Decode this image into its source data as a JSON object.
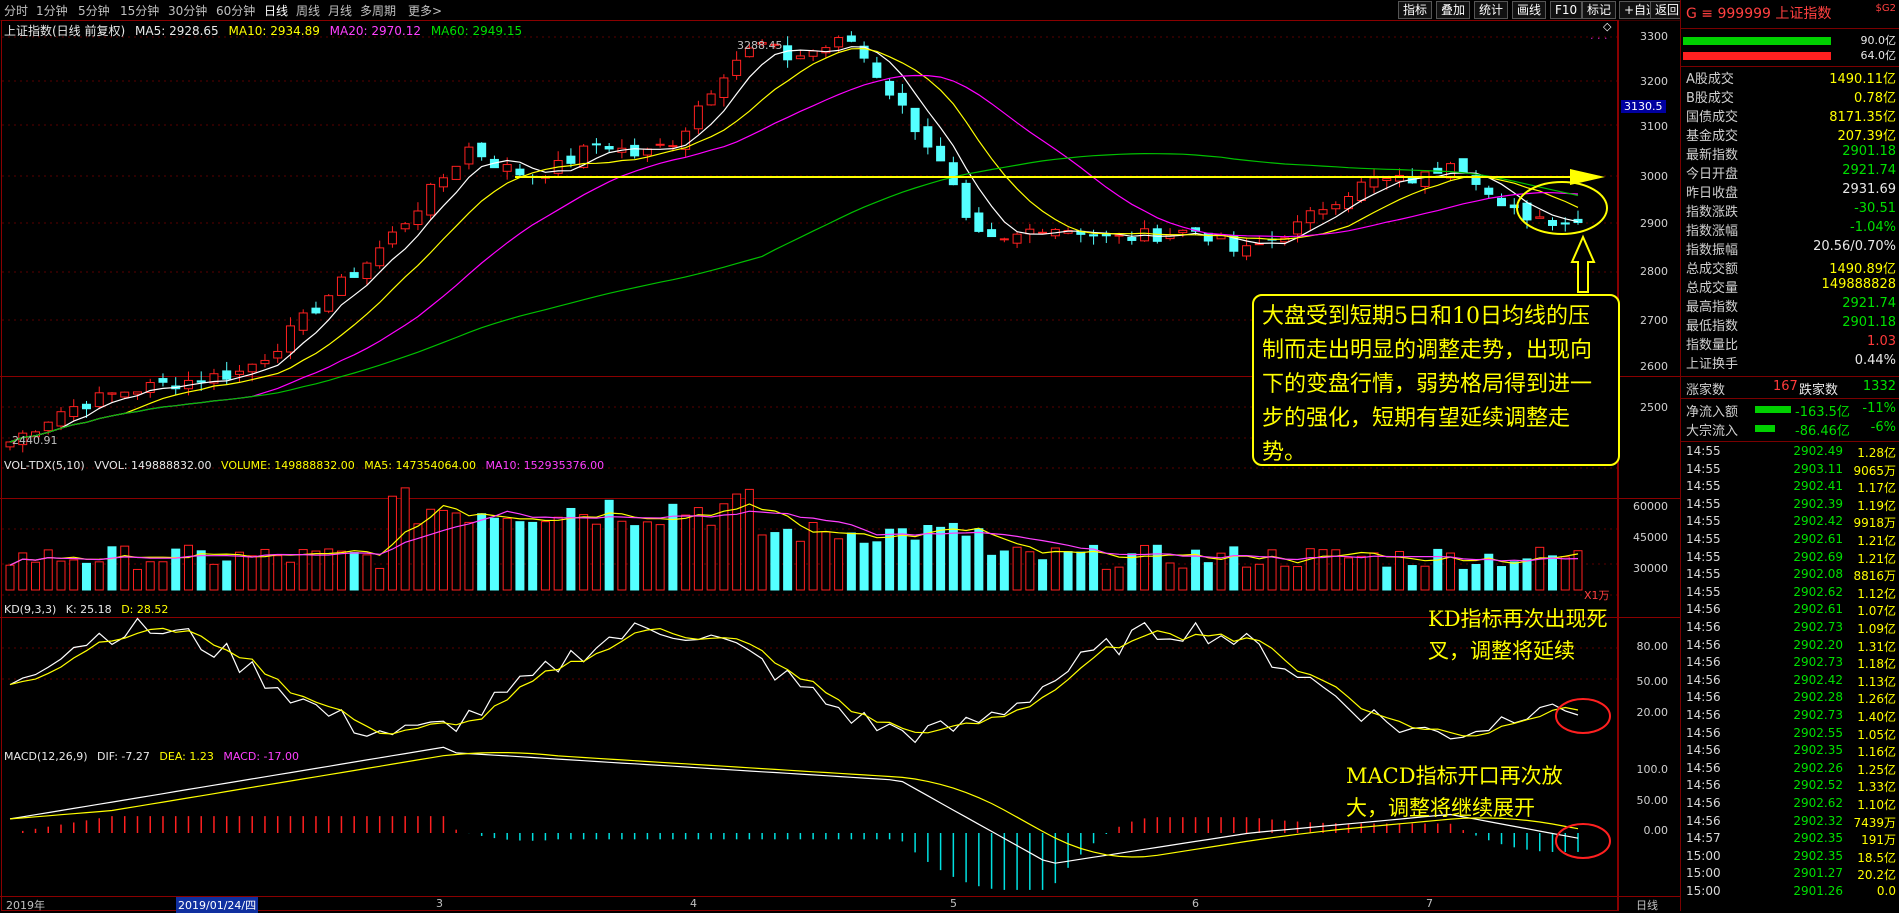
{
  "toolbar": {
    "timeframes": [
      "分时",
      "1分钟",
      "5分钟",
      "15分钟",
      "30分钟",
      "60分钟",
      "日线",
      "周线",
      "月线",
      "多周期",
      "更多>"
    ],
    "active_index": 6,
    "right_buttons": [
      "指标",
      "叠加",
      "统计",
      "画线",
      "F10",
      "标记",
      "+自选",
      "返回"
    ]
  },
  "kline": {
    "title": "上证指数(日线 前复权)",
    "ma5": "MA5: 2928.65",
    "ma10": "MA10: 2934.89",
    "ma20": "MA20: 2970.12",
    "ma60": "MA60: 2949.15",
    "high_label": "3288.45",
    "low_label": "2440.91",
    "price_tag": "3130.5",
    "yticks": [
      "3300",
      "3200",
      "3100",
      "3000",
      "2900",
      "2800",
      "2700",
      "2600",
      "2500"
    ],
    "colors": {
      "ma5": "#ffffff",
      "ma10": "#ffff00",
      "ma20": "#ff00ff",
      "ma60": "#00c000",
      "up": "#ff2020",
      "down": "#54ffff"
    }
  },
  "vol": {
    "title": "VOL-TDX(5,10)",
    "vvol": "VVOL: 149888832.00",
    "volume": "VOLUME: 149888832.00",
    "ma5": "MA5: 147354064.00",
    "ma10": "MA10: 152935376.00",
    "yticks": [
      "60000",
      "45000",
      "30000",
      "15000"
    ],
    "unit": "X1万"
  },
  "kd": {
    "title": "KD(9,3,3)",
    "k": "K: 25.18",
    "d": "D: 28.52",
    "yticks": [
      "80.00",
      "50.00",
      "20.00"
    ]
  },
  "macd": {
    "title": "MACD(12,26,9)",
    "dif": "DIF: -7.27",
    "dea": "DEA: 1.23",
    "macd": "MACD: -17.00",
    "yticks": [
      "100.0",
      "50.00",
      "0.00"
    ]
  },
  "xaxis": {
    "year": "2019年",
    "cursor_date": "2019/01/24/四",
    "months": [
      "3",
      "4",
      "5",
      "6",
      "7"
    ],
    "period": "日线"
  },
  "annotations": {
    "main": "大盘受到短期5日和10日均线的压制而走出明显的调整走势，出现向下的变盘行情，弱势格局得到进一步的强化，短期有望延续调整走势。",
    "kd": "KD指标再次出现死叉，调整将延续",
    "macd": "MACD指标开口再次放大，调整将继续展开"
  },
  "right_panel": {
    "header_code": "G ≡ 999999 上证指数",
    "header_tag": "$G2",
    "bar1_value": "90.0亿",
    "bar2_value": "64.0亿",
    "stats": [
      {
        "k": "A股成交",
        "v": "1490.11亿",
        "c": "yellow"
      },
      {
        "k": "B股成交",
        "v": "0.78亿",
        "c": "yellow"
      },
      {
        "k": "国债成交",
        "v": "8171.35亿",
        "c": "yellow"
      },
      {
        "k": "基金成交",
        "v": "207.39亿",
        "c": "yellow"
      },
      {
        "k": "最新指数",
        "v": "2901.18",
        "c": "green"
      },
      {
        "k": "今日开盘",
        "v": "2921.74",
        "c": "green"
      },
      {
        "k": "昨日收盘",
        "v": "2931.69",
        "c": "white"
      },
      {
        "k": "指数涨跌",
        "v": "-30.51",
        "c": "green"
      },
      {
        "k": "指数涨幅",
        "v": "-1.04%",
        "c": "green"
      },
      {
        "k": "指数振幅",
        "v": "20.56/0.70%",
        "c": "white"
      },
      {
        "k": "总成交额",
        "v": "1490.89亿",
        "c": "yellow"
      },
      {
        "k": "总成交量",
        "v": "149888828",
        "c": "yellow"
      },
      {
        "k": "最高指数",
        "v": "2921.74",
        "c": "green"
      },
      {
        "k": "最低指数",
        "v": "2901.18",
        "c": "green"
      },
      {
        "k": "指数量比",
        "v": "1.03",
        "c": "red"
      },
      {
        "k": "上证换手",
        "v": "0.44%",
        "c": "white"
      }
    ],
    "rise_label": "涨家数",
    "rise_count": "167",
    "fall_label": "跌家数",
    "fall_count": "1332",
    "netflow_label": "净流入额",
    "netflow_value": "-163.5亿",
    "netflow_pct": "-11%",
    "bigflow_label": "大宗流入",
    "bigflow_value": "-86.46亿",
    "bigflow_pct": "-6%",
    "ticks": [
      {
        "t": "14:55",
        "p": "2902.49",
        "v": "1.28亿"
      },
      {
        "t": "14:55",
        "p": "2903.11",
        "v": "9065万"
      },
      {
        "t": "14:55",
        "p": "2902.41",
        "v": "1.17亿"
      },
      {
        "t": "14:55",
        "p": "2902.39",
        "v": "1.19亿"
      },
      {
        "t": "14:55",
        "p": "2902.42",
        "v": "9918万"
      },
      {
        "t": "14:55",
        "p": "2902.61",
        "v": "1.21亿"
      },
      {
        "t": "14:55",
        "p": "2902.69",
        "v": "1.21亿"
      },
      {
        "t": "14:55",
        "p": "2902.08",
        "v": "8816万"
      },
      {
        "t": "14:55",
        "p": "2902.62",
        "v": "1.12亿"
      },
      {
        "t": "14:56",
        "p": "2902.61",
        "v": "1.07亿"
      },
      {
        "t": "14:56",
        "p": "2902.73",
        "v": "1.09亿"
      },
      {
        "t": "14:56",
        "p": "2902.20",
        "v": "1.31亿"
      },
      {
        "t": "14:56",
        "p": "2902.73",
        "v": "1.18亿"
      },
      {
        "t": "14:56",
        "p": "2902.42",
        "v": "1.13亿"
      },
      {
        "t": "14:56",
        "p": "2902.28",
        "v": "1.26亿"
      },
      {
        "t": "14:56",
        "p": "2902.73",
        "v": "1.40亿"
      },
      {
        "t": "14:56",
        "p": "2902.55",
        "v": "1.05亿"
      },
      {
        "t": "14:56",
        "p": "2902.35",
        "v": "1.16亿"
      },
      {
        "t": "14:56",
        "p": "2902.26",
        "v": "1.25亿"
      },
      {
        "t": "14:56",
        "p": "2902.52",
        "v": "1.33亿"
      },
      {
        "t": "14:56",
        "p": "2902.62",
        "v": "1.10亿"
      },
      {
        "t": "14:56",
        "p": "2902.32",
        "v": "7439万"
      },
      {
        "t": "14:57",
        "p": "2902.35",
        "v": "191万"
      },
      {
        "t": "15:00",
        "p": "2902.35",
        "v": "18.5亿"
      },
      {
        "t": "15:00",
        "p": "2901.27",
        "v": "20.2亿"
      },
      {
        "t": "15:00",
        "p": "2901.26",
        "v": "0.0"
      }
    ]
  }
}
